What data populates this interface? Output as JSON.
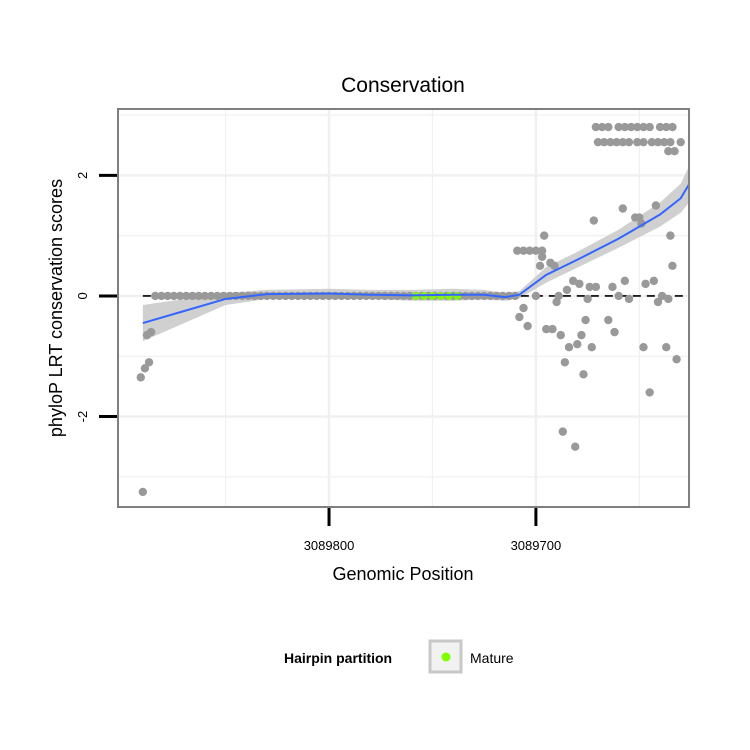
{
  "chart_data": {
    "type": "scatter",
    "title": "Conservation",
    "xlabel": "Genomic Position",
    "ylabel": "phyloP LRT conservation scores",
    "x_reversed": true,
    "xlim": [
      3089902,
      3089626
    ],
    "ylim": [
      -3.5,
      3.1
    ],
    "x_ticks": [
      {
        "value": 3089800,
        "label": "3089800"
      },
      {
        "value": 3089700,
        "label": "3089700"
      }
    ],
    "y_ticks": [
      {
        "value": -2,
        "label": "-2"
      },
      {
        "value": 0,
        "label": "0"
      },
      {
        "value": 2,
        "label": "2"
      }
    ],
    "reference_line": {
      "y": 0,
      "style": "dashed"
    },
    "grid": true,
    "legend": {
      "title": "Hairpin partition",
      "position": "bottom",
      "entries": [
        {
          "label": "Mature",
          "color": "#7fff00"
        }
      ]
    },
    "colors": {
      "points": "#999999",
      "smooth_line": "#3366ff",
      "confidence_band": "#c8c8c8",
      "mature": "#7fff00",
      "panel_border": "#7f7f7f",
      "grid": "#f0f0f0"
    },
    "series": [
      {
        "name": "",
        "kind": "points",
        "points": [
          [
            3089890,
            -3.25
          ],
          [
            3089891,
            -1.35
          ],
          [
            3089889,
            -1.2
          ],
          [
            3089887,
            -1.1
          ],
          [
            3089888,
            -0.65
          ],
          [
            3089886,
            -0.6
          ],
          [
            3089884,
            0
          ],
          [
            3089881,
            0
          ],
          [
            3089878,
            0
          ],
          [
            3089875,
            0
          ],
          [
            3089872,
            0
          ],
          [
            3089869,
            0
          ],
          [
            3089866,
            0
          ],
          [
            3089863,
            0
          ],
          [
            3089860,
            0
          ],
          [
            3089857,
            0
          ],
          [
            3089854,
            0
          ],
          [
            3089851,
            0
          ],
          [
            3089848,
            0
          ],
          [
            3089845,
            0
          ],
          [
            3089842,
            0
          ],
          [
            3089839,
            0
          ],
          [
            3089836,
            0
          ],
          [
            3089833,
            0
          ],
          [
            3089830,
            0
          ],
          [
            3089827,
            0
          ],
          [
            3089824,
            0
          ],
          [
            3089821,
            0
          ],
          [
            3089818,
            0
          ],
          [
            3089815,
            0
          ],
          [
            3089812,
            0
          ],
          [
            3089809,
            0
          ],
          [
            3089806,
            0
          ],
          [
            3089803,
            0
          ],
          [
            3089800,
            0
          ],
          [
            3089797,
            0
          ],
          [
            3089794,
            0
          ],
          [
            3089791,
            0
          ],
          [
            3089788,
            0
          ],
          [
            3089785,
            0
          ],
          [
            3089782,
            0
          ],
          [
            3089779,
            0
          ],
          [
            3089776,
            0
          ],
          [
            3089773,
            0
          ],
          [
            3089770,
            0
          ],
          [
            3089767,
            0
          ],
          [
            3089764,
            0
          ],
          [
            3089761,
            0
          ],
          [
            3089758,
            0
          ],
          [
            3089755,
            0
          ],
          [
            3089752,
            0
          ],
          [
            3089749,
            0
          ],
          [
            3089746,
            0
          ],
          [
            3089743,
            0
          ],
          [
            3089740,
            0
          ],
          [
            3089737,
            0
          ],
          [
            3089734,
            0
          ],
          [
            3089731,
            0
          ],
          [
            3089728,
            0
          ],
          [
            3089725,
            0
          ],
          [
            3089722,
            0
          ],
          [
            3089719,
            0
          ],
          [
            3089716,
            0
          ],
          [
            3089713,
            0
          ],
          [
            3089710,
            0
          ],
          [
            3089709,
            0.75
          ],
          [
            3089706,
            0.75
          ],
          [
            3089703,
            0.75
          ],
          [
            3089700,
            0.75
          ],
          [
            3089697,
            0.75
          ],
          [
            3089696,
            1.0
          ],
          [
            3089708,
            -0.35
          ],
          [
            3089706,
            -0.2
          ],
          [
            3089704,
            -0.5
          ],
          [
            3089700,
            0
          ],
          [
            3089698,
            0.5
          ],
          [
            3089697,
            0.65
          ],
          [
            3089695,
            -0.55
          ],
          [
            3089693,
            0.55
          ],
          [
            3089692,
            -0.55
          ],
          [
            3089691,
            0.5
          ],
          [
            3089690,
            -0.1
          ],
          [
            3089689,
            0
          ],
          [
            3089688,
            -0.65
          ],
          [
            3089687,
            -2.25
          ],
          [
            3089686,
            -1.1
          ],
          [
            3089685,
            0.1
          ],
          [
            3089684,
            -0.85
          ],
          [
            3089682,
            0.25
          ],
          [
            3089681,
            -2.5
          ],
          [
            3089680,
            -0.8
          ],
          [
            3089679,
            0.2
          ],
          [
            3089678,
            -0.65
          ],
          [
            3089677,
            -1.3
          ],
          [
            3089676,
            -0.4
          ],
          [
            3089675,
            -0.05
          ],
          [
            3089674,
            0.15
          ],
          [
            3089673,
            -0.85
          ],
          [
            3089672,
            1.25
          ],
          [
            3089671,
            0.15
          ],
          [
            3089665,
            -0.4
          ],
          [
            3089663,
            0.15
          ],
          [
            3089662,
            -0.6
          ],
          [
            3089660,
            0
          ],
          [
            3089658,
            1.45
          ],
          [
            3089657,
            0.25
          ],
          [
            3089655,
            -0.05
          ],
          [
            3089652,
            1.3
          ],
          [
            3089650,
            1.3
          ],
          [
            3089649,
            1.2
          ],
          [
            3089648,
            -0.85
          ],
          [
            3089647,
            0.2
          ],
          [
            3089645,
            -1.6
          ],
          [
            3089643,
            0.25
          ],
          [
            3089642,
            1.5
          ],
          [
            3089641,
            -0.1
          ],
          [
            3089639,
            0
          ],
          [
            3089637,
            -0.85
          ],
          [
            3089636,
            -0.05
          ],
          [
            3089635,
            1.0
          ],
          [
            3089634,
            0.5
          ],
          [
            3089632,
            -1.05
          ],
          [
            3089671,
            2.8
          ],
          [
            3089668,
            2.8
          ],
          [
            3089665,
            2.8
          ],
          [
            3089660,
            2.8
          ],
          [
            3089657,
            2.8
          ],
          [
            3089654,
            2.8
          ],
          [
            3089651,
            2.8
          ],
          [
            3089648,
            2.8
          ],
          [
            3089645,
            2.8
          ],
          [
            3089640,
            2.8
          ],
          [
            3089637,
            2.8
          ],
          [
            3089634,
            2.8
          ],
          [
            3089670,
            2.55
          ],
          [
            3089667,
            2.55
          ],
          [
            3089664,
            2.55
          ],
          [
            3089661,
            2.55
          ],
          [
            3089658,
            2.55
          ],
          [
            3089655,
            2.55
          ],
          [
            3089651,
            2.55
          ],
          [
            3089648,
            2.55
          ],
          [
            3089644,
            2.55
          ],
          [
            3089641,
            2.55
          ],
          [
            3089638,
            2.55
          ],
          [
            3089635,
            2.55
          ],
          [
            3089630,
            2.55
          ],
          [
            3089636,
            2.4
          ],
          [
            3089633,
            2.4
          ]
        ]
      },
      {
        "name": "Mature",
        "kind": "points",
        "points": [
          [
            3089758,
            0
          ],
          [
            3089754,
            0
          ],
          [
            3089750,
            0
          ],
          [
            3089746,
            0
          ],
          [
            3089742,
            0
          ],
          [
            3089738,
            0
          ]
        ]
      },
      {
        "name": "",
        "kind": "smooth",
        "points": [
          [
            3089890,
            -0.45
          ],
          [
            3089870,
            -0.25
          ],
          [
            3089850,
            -0.05
          ],
          [
            3089830,
            0.03
          ],
          [
            3089800,
            0.04
          ],
          [
            3089780,
            0.02
          ],
          [
            3089760,
            0.01
          ],
          [
            3089740,
            0.02
          ],
          [
            3089725,
            0.02
          ],
          [
            3089715,
            -0.02
          ],
          [
            3089708,
            0.02
          ],
          [
            3089695,
            0.35
          ],
          [
            3089680,
            0.6
          ],
          [
            3089660,
            0.95
          ],
          [
            3089640,
            1.35
          ],
          [
            3089630,
            1.62
          ],
          [
            3089626,
            1.85
          ]
        ],
        "band_lower": [
          -0.75,
          -0.45,
          -0.15,
          -0.05,
          -0.05,
          -0.05,
          -0.08,
          -0.08,
          -0.06,
          -0.08,
          -0.04,
          0.22,
          0.47,
          0.8,
          1.15,
          1.38,
          1.55
        ],
        "band_upper": [
          -0.15,
          -0.05,
          0.05,
          0.1,
          0.12,
          0.1,
          0.1,
          0.12,
          0.1,
          0.05,
          0.08,
          0.48,
          0.73,
          1.1,
          1.55,
          1.86,
          2.15
        ]
      }
    ]
  }
}
